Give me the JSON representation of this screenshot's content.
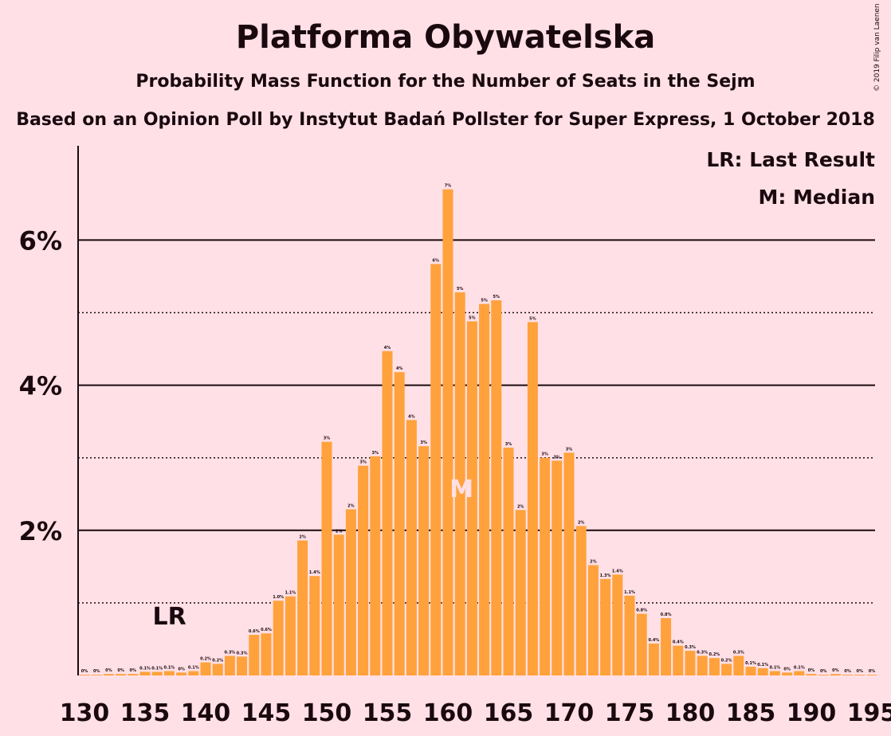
{
  "title": "Platforma Obywatelska",
  "subtitle": "Probability Mass Function for the Number of Seats in the Sejm",
  "basis": "Based on an Opinion Poll by Instytut Badań Pollster for Super Express, 1 October 2018",
  "copyright": "© 2019 Filip van Laenen",
  "legend": {
    "last_result": "LR: Last Result",
    "median": "M: Median"
  },
  "markers": {
    "last_result_label": "LR",
    "median_label": "M"
  },
  "colors": {
    "bar": "#ffa23c",
    "background": "#ffe0e6",
    "text": "#1a0a10"
  },
  "chart_data": {
    "type": "bar",
    "title": "Platforma Obywatelska",
    "subtitle": "Probability Mass Function for the Number of Seats in the Sejm",
    "xlabel": "",
    "ylabel": "",
    "xlim": [
      130,
      195
    ],
    "ylim": [
      0,
      7
    ],
    "x_ticks": [
      130,
      135,
      140,
      145,
      150,
      155,
      160,
      165,
      170,
      175,
      180,
      185,
      190,
      195
    ],
    "y_ticks": [
      {
        "value": 2,
        "label": "2%"
      },
      {
        "value": 4,
        "label": "4%"
      },
      {
        "value": 6,
        "label": "6%"
      }
    ],
    "solid_gridlines": [
      2,
      4,
      6
    ],
    "dotted_gridlines": [
      1,
      3,
      5
    ],
    "last_result": 138,
    "median": 161,
    "seats": [
      130,
      131,
      132,
      133,
      134,
      135,
      136,
      137,
      138,
      139,
      140,
      141,
      142,
      143,
      144,
      145,
      146,
      147,
      148,
      149,
      150,
      151,
      152,
      153,
      154,
      155,
      156,
      157,
      158,
      159,
      160,
      161,
      162,
      163,
      164,
      165,
      166,
      167,
      168,
      169,
      170,
      171,
      172,
      173,
      174,
      175,
      176,
      177,
      178,
      179,
      180,
      181,
      182,
      183,
      184,
      185,
      186,
      187,
      188,
      189,
      190,
      191,
      192,
      193,
      194,
      195
    ],
    "values": [
      0.01,
      0.01,
      0.02,
      0.02,
      0.02,
      0.05,
      0.05,
      0.06,
      0.04,
      0.06,
      0.18,
      0.16,
      0.27,
      0.26,
      0.56,
      0.58,
      1.03,
      1.09,
      1.86,
      1.37,
      3.22,
      1.94,
      2.29,
      2.89,
      3.02,
      4.47,
      4.18,
      3.52,
      3.16,
      5.67,
      6.7,
      5.28,
      4.88,
      5.12,
      5.17,
      3.14,
      2.28,
      4.87,
      3.0,
      2.96,
      3.07,
      2.06,
      1.52,
      1.33,
      1.39,
      1.1,
      0.85,
      0.44,
      0.79,
      0.41,
      0.34,
      0.27,
      0.24,
      0.16,
      0.27,
      0.12,
      0.1,
      0.06,
      0.04,
      0.06,
      0.02,
      0.01,
      0.02,
      0.01,
      0.01,
      0.01
    ],
    "labels": [
      "0%",
      "0%",
      "0%",
      "0%",
      "0%",
      "0.1%",
      "0.1%",
      "0.1%",
      "0%",
      "0.1%",
      "0.2%",
      "0.2%",
      "0.3%",
      "0.3%",
      "0.6%",
      "0.6%",
      "1.0%",
      "1.1%",
      "2%",
      "1.4%",
      "3%",
      "2%",
      "2%",
      "3%",
      "3%",
      "4%",
      "4%",
      "4%",
      "3%",
      "6%",
      "7%",
      "5%",
      "5%",
      "5%",
      "5%",
      "3%",
      "2%",
      "5%",
      "3%",
      "3%",
      "3%",
      "2%",
      "2%",
      "1.3%",
      "1.4%",
      "1.1%",
      "0.8%",
      "0.4%",
      "0.8%",
      "0.4%",
      "0.3%",
      "0.3%",
      "0.2%",
      "0.2%",
      "0.3%",
      "0.1%",
      "0.1%",
      "0.1%",
      "0%",
      "0.1%",
      "0%",
      "0%",
      "0%",
      "0%",
      "0%",
      "0%"
    ]
  }
}
